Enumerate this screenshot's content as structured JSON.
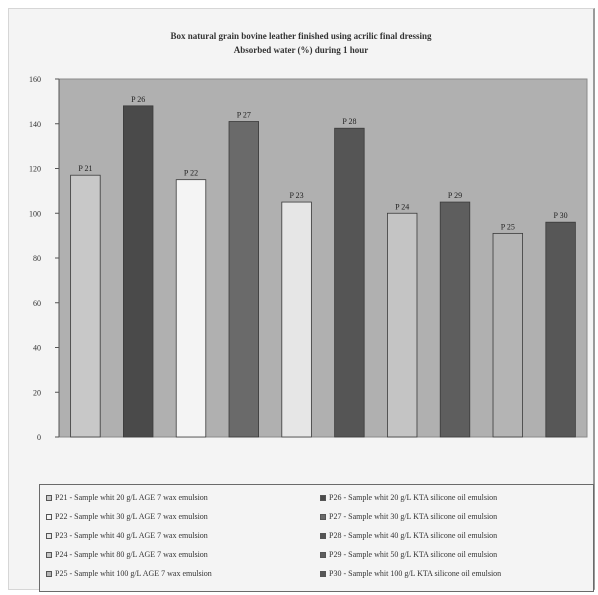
{
  "chart_data": {
    "type": "bar",
    "title": "Box natural grain bovine leather finished using acrilic final dressing",
    "subtitle": "Absorbed water (%) during 1 hour",
    "xlabel": "",
    "ylabel": "",
    "ylim": [
      0,
      160
    ],
    "yticks": [
      0,
      20,
      40,
      60,
      80,
      100,
      120,
      140,
      160
    ],
    "grid": false,
    "legend_position": "bottom",
    "categories": [
      "P 21",
      "P 26",
      "P 22",
      "P 27",
      "P 23",
      "P 28",
      "P 24",
      "P 29",
      "P 25",
      "P 30"
    ],
    "values": [
      117,
      148,
      115,
      141,
      105,
      138,
      100,
      105,
      91,
      96
    ],
    "bar_colors": [
      "#c8c8c8",
      "#4a4a4a",
      "#f4f4f4",
      "#6a6a6a",
      "#e6e6e6",
      "#555555",
      "#c4c4c4",
      "#5e5e5e",
      "#b4b4b4",
      "#575757"
    ],
    "plot_background": "#b0b0b0",
    "legend": [
      {
        "label": "P21 - Sample whit 20 g/L AGE 7 wax emulsion",
        "color": "#c8c8c8"
      },
      {
        "label": "P22 - Sample whit 30 g/L AGE 7 wax emulsion",
        "color": "#f4f4f4"
      },
      {
        "label": "P23 - Sample whit 40 g/L AGE 7 wax emulsion",
        "color": "#e6e6e6"
      },
      {
        "label": "P24 - Sample whit 80 g/L AGE 7 wax emulsion",
        "color": "#c4c4c4"
      },
      {
        "label": "P25 - Sample whit 100 g/L AGE 7 wax emulsion",
        "color": "#b4b4b4"
      },
      {
        "label": "P26 - Sample whit 20 g/L KTA silicone oil emulsion",
        "color": "#4a4a4a"
      },
      {
        "label": "P27 - Sample whit 30 g/L KTA silicone oil emulsion",
        "color": "#6a6a6a"
      },
      {
        "label": "P28 - Sample whit 40 g/L KTA silicone oil emulsion",
        "color": "#555555"
      },
      {
        "label": "P29 - Sample whit 50 g/L KTA silicone oil emulsion",
        "color": "#5e5e5e"
      },
      {
        "label": "P30 - Sample whit 100 g/L KTA silicone oil emulsion",
        "color": "#575757"
      }
    ]
  }
}
